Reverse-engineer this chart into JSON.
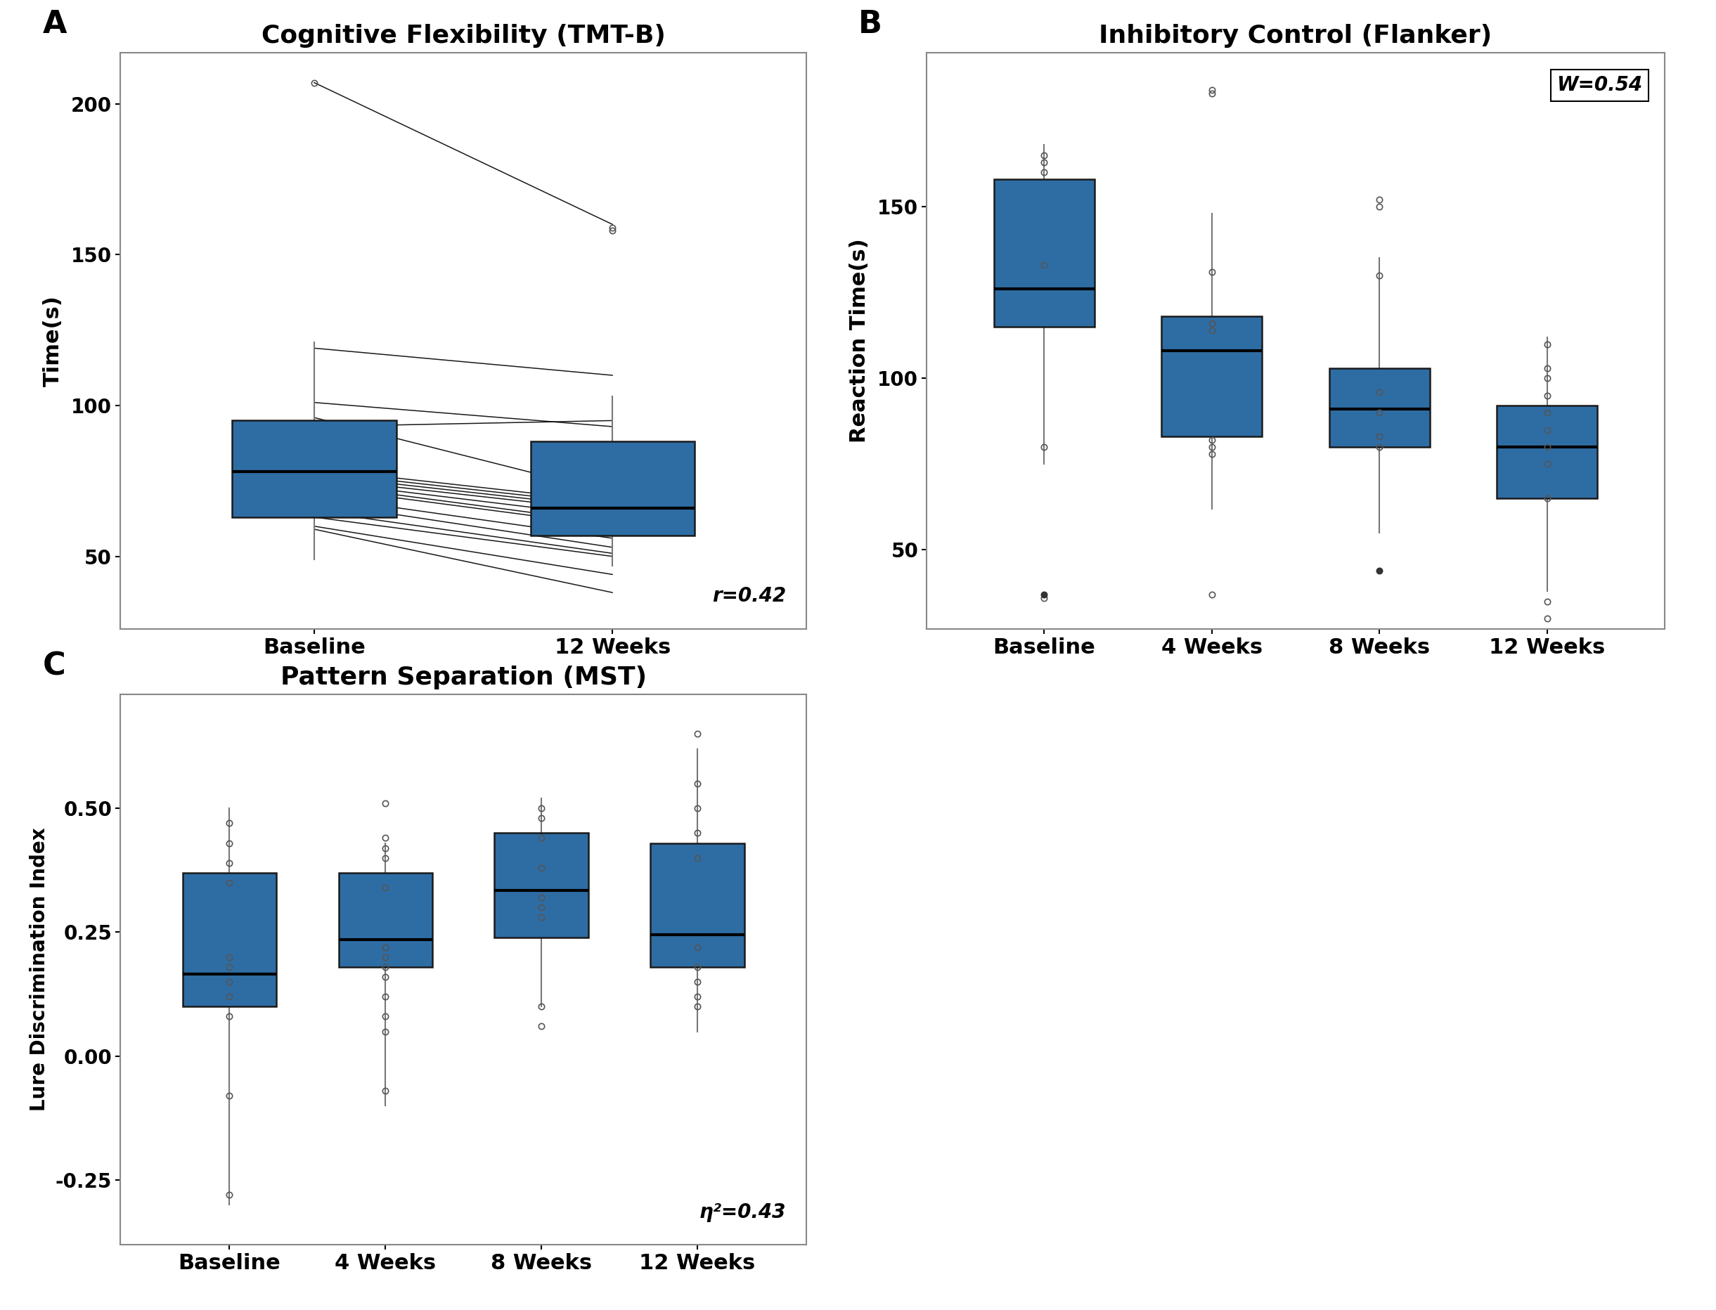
{
  "panel_A": {
    "title": "Cognitive Flexibility (TMT-B)",
    "ylabel": "Time(s)",
    "xlabel_labels": [
      "Baseline",
      "12 Weeks"
    ],
    "effect_size": "r=0.42",
    "box_baseline": {
      "q1": 63,
      "median": 78,
      "q3": 95,
      "whislo": 49,
      "whishi": 121
    },
    "box_12wk": {
      "q1": 57,
      "median": 66,
      "q3": 88,
      "whislo": 47,
      "whishi": 103
    },
    "outliers_baseline": [
      207
    ],
    "outliers_12wk": [
      158,
      159
    ],
    "paired_lines": [
      [
        207,
        160
      ],
      [
        119,
        110
      ],
      [
        101,
        93
      ],
      [
        96,
        71
      ],
      [
        93,
        95
      ],
      [
        79,
        68
      ],
      [
        78,
        67
      ],
      [
        77,
        66
      ],
      [
        76,
        65
      ],
      [
        75,
        63
      ],
      [
        74,
        61
      ],
      [
        73,
        60
      ],
      [
        70,
        56
      ],
      [
        68,
        53
      ],
      [
        65,
        51
      ],
      [
        63,
        50
      ],
      [
        60,
        44
      ],
      [
        59,
        38
      ]
    ],
    "ylim": [
      26,
      217
    ],
    "yticks": [
      50,
      100,
      150,
      200
    ]
  },
  "panel_B": {
    "title": "Inhibitory Control (Flanker)",
    "ylabel": "Reaction Time(s)",
    "xlabel_labels": [
      "Baseline",
      "4 Weeks",
      "8 Weeks",
      "12 Weeks"
    ],
    "effect_size": "W=0.54",
    "effect_size_corner": "top_right",
    "boxes": [
      {
        "q1": 115,
        "median": 126,
        "q3": 158,
        "whislo": 75,
        "whishi": 168,
        "outliers_filled": [
          37
        ],
        "outliers_open": [
          36,
          165,
          163,
          160,
          133,
          80
        ]
      },
      {
        "q1": 83,
        "median": 108,
        "q3": 118,
        "whislo": 62,
        "whishi": 148,
        "outliers_filled": [],
        "outliers_open": [
          183,
          184,
          131,
          116,
          114,
          82,
          80,
          78,
          37
        ]
      },
      {
        "q1": 80,
        "median": 91,
        "q3": 103,
        "whislo": 55,
        "whishi": 135,
        "outliers_filled": [
          44
        ],
        "outliers_open": [
          152,
          150,
          130,
          96,
          90,
          83,
          80
        ]
      },
      {
        "q1": 65,
        "median": 80,
        "q3": 92,
        "whislo": 38,
        "whishi": 112,
        "outliers_filled": [],
        "outliers_open": [
          110,
          103,
          100,
          95,
          90,
          85,
          80,
          75,
          65,
          35,
          30
        ]
      }
    ],
    "ylim": [
      27,
      195
    ],
    "yticks": [
      50,
      100,
      150
    ]
  },
  "panel_C": {
    "title": "Pattern Separation (MST)",
    "ylabel": "Lure Discrimination Index",
    "xlabel_labels": [
      "Baseline",
      "4 Weeks",
      "8 Weeks",
      "12 Weeks"
    ],
    "effect_size": "η²=0.43",
    "effect_size_corner": "bottom_right",
    "boxes": [
      {
        "q1": 0.1,
        "median": 0.165,
        "q3": 0.37,
        "whislo": -0.3,
        "whishi": 0.5,
        "outliers_open": [
          0.47,
          0.43,
          0.39,
          0.35,
          0.2,
          0.18,
          0.15,
          0.12,
          0.08,
          -0.08,
          -0.28
        ]
      },
      {
        "q1": 0.18,
        "median": 0.235,
        "q3": 0.37,
        "whislo": -0.1,
        "whishi": 0.43,
        "outliers_open": [
          0.51,
          0.44,
          0.42,
          0.4,
          0.34,
          0.22,
          0.2,
          0.18,
          0.16,
          0.12,
          0.08,
          0.05,
          -0.07
        ]
      },
      {
        "q1": 0.24,
        "median": 0.335,
        "q3": 0.45,
        "whislo": 0.1,
        "whishi": 0.52,
        "outliers_open": [
          0.5,
          0.48,
          0.44,
          0.38,
          0.32,
          0.3,
          0.28,
          0.1,
          0.06
        ]
      },
      {
        "q1": 0.18,
        "median": 0.245,
        "q3": 0.43,
        "whislo": 0.05,
        "whishi": 0.62,
        "outliers_open": [
          0.65,
          0.55,
          0.5,
          0.45,
          0.4,
          0.22,
          0.18,
          0.15,
          0.12,
          0.1
        ]
      }
    ],
    "ylim": [
      -0.38,
      0.73
    ],
    "yticks": [
      -0.25,
      0.0,
      0.25,
      0.5
    ]
  },
  "box_color": "#2E6DA4",
  "box_edgecolor": "#1a1a1a",
  "median_color": "#000000",
  "background_color": "#ffffff",
  "plot_bg_color": "#ffffff",
  "label_fontsize": 22,
  "title_fontsize": 26,
  "tick_fontsize": 20,
  "effect_fontsize": 20,
  "panel_label_fontsize": 32
}
